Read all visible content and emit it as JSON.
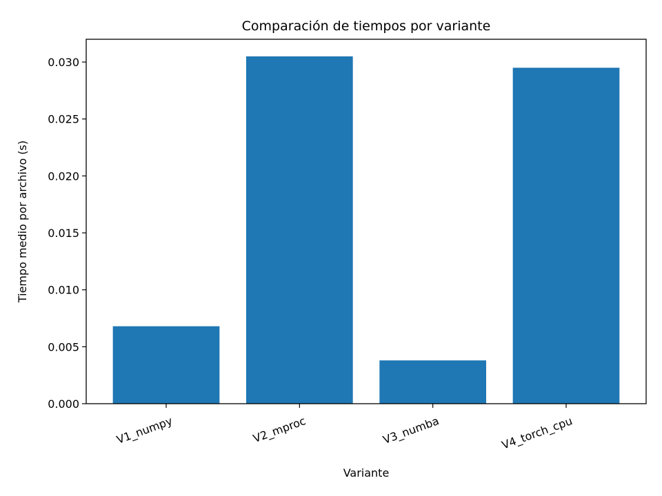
{
  "chart_data": {
    "type": "bar",
    "title": "Comparación de tiempos por variante",
    "xlabel": "Variante",
    "ylabel": "Tiempo medio por archivo (s)",
    "categories": [
      "V1_numpy",
      "V2_mproc",
      "V3_numba",
      "V4_torch_cpu"
    ],
    "values": [
      0.0068,
      0.0305,
      0.0038,
      0.0295
    ],
    "ylim": [
      0,
      0.032
    ],
    "yticks": [
      "0.000",
      "0.005",
      "0.010",
      "0.015",
      "0.020",
      "0.025",
      "0.030"
    ],
    "grid": false,
    "legend": "none",
    "bar_color": "#1f77b4",
    "xtick_rotation": "slanted"
  }
}
